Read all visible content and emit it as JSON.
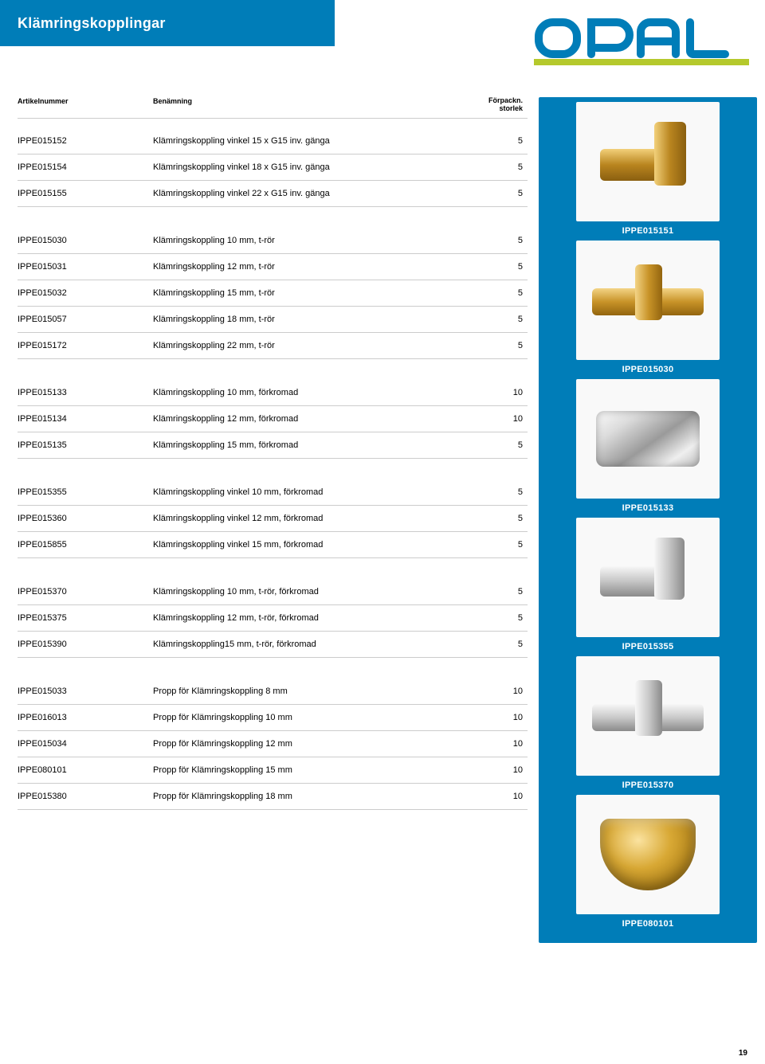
{
  "page": {
    "title": "Klämringskopplingar",
    "page_number": "19",
    "colors": {
      "accent": "#007db8",
      "text": "#000000",
      "divider": "#cccccc",
      "lime": "#b5c92c"
    }
  },
  "logo": {
    "text": "OPAL"
  },
  "table": {
    "headers": {
      "article": "Artikelnummer",
      "name": "Benämning",
      "pack": "Förpackn.\nstorlek"
    },
    "groups": [
      [
        {
          "art": "IPPE015152",
          "name": "Klämringskoppling vinkel 15 x G15 inv. gänga",
          "qty": "5"
        },
        {
          "art": "IPPE015154",
          "name": "Klämringskoppling vinkel 18 x G15 inv. gänga",
          "qty": "5"
        },
        {
          "art": "IPPE015155",
          "name": "Klämringskoppling vinkel 22 x G15 inv. gänga",
          "qty": "5"
        }
      ],
      [
        {
          "art": "IPPE015030",
          "name": "Klämringskoppling 10 mm, t-rör",
          "qty": "5"
        },
        {
          "art": "IPPE015031",
          "name": "Klämringskoppling 12 mm, t-rör",
          "qty": "5"
        },
        {
          "art": "IPPE015032",
          "name": "Klämringskoppling 15 mm, t-rör",
          "qty": "5"
        },
        {
          "art": "IPPE015057",
          "name": "Klämringskoppling 18 mm, t-rör",
          "qty": "5"
        },
        {
          "art": "IPPE015172",
          "name": "Klämringskoppling 22 mm, t-rör",
          "qty": "5"
        }
      ],
      [
        {
          "art": "IPPE015133",
          "name": "Klämringskoppling 10 mm, förkromad",
          "qty": "10"
        },
        {
          "art": "IPPE015134",
          "name": "Klämringskoppling 12 mm, förkromad",
          "qty": "10"
        },
        {
          "art": "IPPE015135",
          "name": "Klämringskoppling 15 mm, förkromad",
          "qty": "5"
        }
      ],
      [
        {
          "art": "IPPE015355",
          "name": "Klämringskoppling vinkel 10 mm, förkromad",
          "qty": "5"
        },
        {
          "art": "IPPE015360",
          "name": "Klämringskoppling vinkel 12 mm, förkromad",
          "qty": "5"
        },
        {
          "art": "IPPE015855",
          "name": "Klämringskoppling vinkel 15 mm, förkromad",
          "qty": "5"
        }
      ],
      [
        {
          "art": "IPPE015370",
          "name": "Klämringskoppling 10 mm, t-rör, förkromad",
          "qty": "5"
        },
        {
          "art": "IPPE015375",
          "name": "Klämringskoppling 12 mm, t-rör, förkromad",
          "qty": "5"
        },
        {
          "art": "IPPE015390",
          "name": "Klämringskoppling15 mm, t-rör, förkromad",
          "qty": "5"
        }
      ],
      [
        {
          "art": "IPPE015033",
          "name": "Propp för Klämringskoppling 8 mm",
          "qty": "10"
        },
        {
          "art": "IPPE016013",
          "name": "Propp för Klämringskoppling 10 mm",
          "qty": "10"
        },
        {
          "art": "IPPE015034",
          "name": "Propp för Klämringskoppling 12 mm",
          "qty": "10"
        },
        {
          "art": "IPPE080101",
          "name": "Propp för Klämringskoppling 15 mm",
          "qty": "10"
        },
        {
          "art": "IPPE015380",
          "name": "Propp för Klämringskoppling 18 mm",
          "qty": "10"
        }
      ]
    ]
  },
  "sidebar": {
    "items": [
      {
        "label": "IPPE015151",
        "shape": "fitting-elbow-brass"
      },
      {
        "label": "IPPE015030",
        "shape": "fitting-tee-brass"
      },
      {
        "label": "IPPE015133",
        "shape": "fitting-chrome"
      },
      {
        "label": "IPPE015355",
        "shape": "fitting-elbow-chrome"
      },
      {
        "label": "IPPE015370",
        "shape": "fitting-tee-chrome"
      },
      {
        "label": "IPPE080101",
        "shape": "fitting-plug-brass"
      }
    ]
  }
}
